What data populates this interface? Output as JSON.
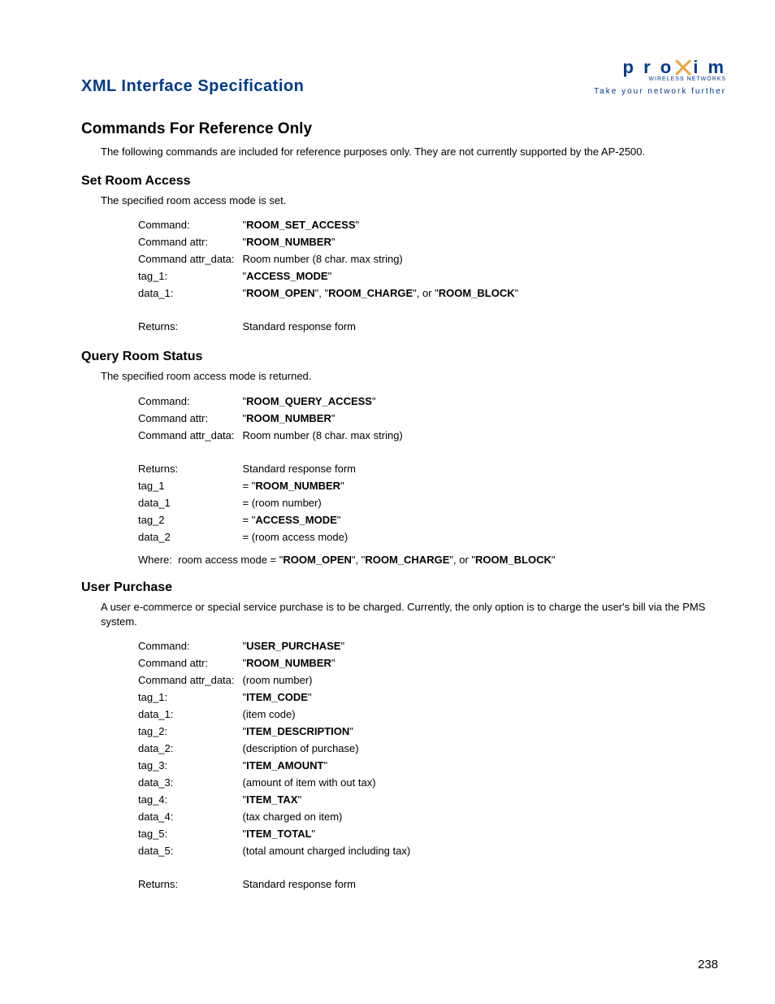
{
  "header": {
    "doc_title": "XML Interface Specification",
    "logo": {
      "brand_p": "p r o",
      "brand_x": "x",
      "brand_im": "i m",
      "sub1": "WIRELESS NETWORKS",
      "tagline": "Take your network further"
    }
  },
  "main_heading": "Commands For Reference Only",
  "main_intro": "The following commands are included for reference purposes only. They are not currently supported by the AP-2500.",
  "sections": {
    "set_room_access": {
      "title": "Set Room Access",
      "desc": "The specified room access mode is set.",
      "rows": [
        {
          "label": "Command:",
          "value_pre": "\"",
          "value_bold": "ROOM_SET_ACCESS",
          "value_post": "\""
        },
        {
          "label": "Command attr:",
          "value_pre": "\"",
          "value_bold": "ROOM_NUMBER",
          "value_post": "\""
        },
        {
          "label": "Command attr_data:",
          "value_plain": "Room number (8 char. max string)"
        },
        {
          "label": "tag_1:",
          "value_pre": "\"",
          "value_bold": "ACCESS_MODE",
          "value_post": "\""
        },
        {
          "label": "data_1:",
          "value_html": "\"<b>ROOM_OPEN</b>\", \"<b>ROOM_CHARGE</b>\", or \"<b>ROOM_BLOCK</b>\""
        }
      ],
      "returns_label": "Returns:",
      "returns_value": "Standard response form"
    },
    "query_room_status": {
      "title": "Query Room Status",
      "desc": "The specified room access mode is returned.",
      "rows1": [
        {
          "label": "Command:",
          "value_pre": "\"",
          "value_bold": "ROOM_QUERY_ACCESS",
          "value_post": "\""
        },
        {
          "label": "Command attr:",
          "value_pre": "\"",
          "value_bold": "ROOM_NUMBER",
          "value_post": "\""
        },
        {
          "label": "Command attr_data:",
          "value_plain": "Room number (8 char. max string)"
        }
      ],
      "rows2": [
        {
          "label": "Returns:",
          "value_plain": "Standard response form"
        },
        {
          "label": "tag_1",
          "value_html": "= \"<b>ROOM_NUMBER</b>\""
        },
        {
          "label": "data_1",
          "value_plain": "= (room number)"
        },
        {
          "label": "tag_2",
          "value_html": "= \"<b>ACCESS_MODE</b>\""
        },
        {
          "label": "data_2",
          "value_plain": "= (room access mode)"
        }
      ],
      "where_html": "Where:&nbsp;&nbsp;room access mode = \"<b>ROOM_OPEN</b>\", \"<b>ROOM_CHARGE</b>\", or \"<b>ROOM_BLOCK</b>\""
    },
    "user_purchase": {
      "title": "User Purchase",
      "desc": "A user e-commerce or special service purchase is to be charged. Currently, the only option is to charge the user's bill via the PMS system.",
      "rows": [
        {
          "label": "Command:",
          "value_pre": "\"",
          "value_bold": "USER_PURCHASE",
          "value_post": "\""
        },
        {
          "label": "Command attr:",
          "value_pre": "\"",
          "value_bold": "ROOM_NUMBER",
          "value_post": "\""
        },
        {
          "label": "Command attr_data:",
          "value_plain": "(room number)"
        },
        {
          "label": "tag_1:",
          "value_pre": "\"",
          "value_bold": "ITEM_CODE",
          "value_post": "\""
        },
        {
          "label": "data_1:",
          "value_plain": "(item code)"
        },
        {
          "label": "tag_2:",
          "value_pre": "\"",
          "value_bold": "ITEM_DESCRIPTION",
          "value_post": "\""
        },
        {
          "label": "data_2:",
          "value_plain": "(description of purchase)"
        },
        {
          "label": "tag_3:",
          "value_pre": "\"",
          "value_bold": "ITEM_AMOUNT",
          "value_post": "\""
        },
        {
          "label": "data_3:",
          "value_plain": "(amount of item with out tax)"
        },
        {
          "label": "tag_4:",
          "value_pre": "\"",
          "value_bold": "ITEM_TAX",
          "value_post": "\""
        },
        {
          "label": "data_4:",
          "value_plain": "(tax charged on item)"
        },
        {
          "label": "tag_5:",
          "value_pre": "\"",
          "value_bold": "ITEM_TOTAL",
          "value_post": "\""
        },
        {
          "label": "data_5:",
          "value_plain": "(total amount charged including tax)"
        }
      ],
      "returns_label": "Returns:",
      "returns_value": "Standard response form"
    }
  },
  "page_number": "238"
}
